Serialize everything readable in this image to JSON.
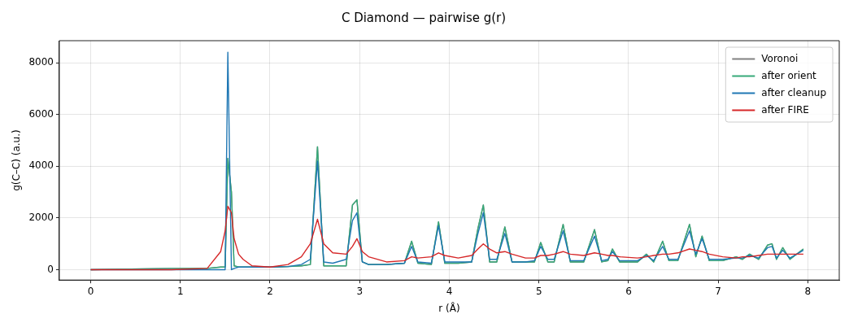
{
  "chart_data": {
    "type": "line",
    "title": "C Diamond — pairwise g(r)",
    "xlabel": "r (Å)",
    "ylabel": "g(C–C) (a.u.)",
    "x": [
      0,
      0.9,
      1.3,
      1.45,
      1.5,
      1.53,
      1.57,
      1.6,
      1.65,
      1.7,
      1.8,
      2.0,
      2.2,
      2.35,
      2.45,
      2.53,
      2.6,
      2.7,
      2.85,
      2.92,
      2.97,
      3.03,
      3.1,
      3.3,
      3.5,
      3.58,
      3.65,
      3.8,
      3.88,
      3.95,
      4.1,
      4.25,
      4.32,
      4.38,
      4.45,
      4.53,
      4.62,
      4.7,
      4.85,
      4.95,
      5.02,
      5.1,
      5.17,
      5.27,
      5.35,
      5.5,
      5.62,
      5.7,
      5.77,
      5.82,
      5.9,
      6.1,
      6.2,
      6.28,
      6.38,
      6.45,
      6.55,
      6.68,
      6.75,
      6.82,
      6.9,
      7.05,
      7.2,
      7.27,
      7.35,
      7.45,
      7.55,
      7.6,
      7.65,
      7.72,
      7.8,
      7.95
    ],
    "series": [
      {
        "name": "Voronoi",
        "color": "#808080",
        "values": [
          0,
          50,
          50,
          100,
          100,
          4300,
          3000,
          150,
          100,
          100,
          100,
          100,
          120,
          150,
          200,
          4750,
          150,
          150,
          150,
          2500,
          2700,
          300,
          200,
          200,
          250,
          1100,
          250,
          200,
          1850,
          250,
          250,
          300,
          1600,
          2500,
          300,
          300,
          1650,
          300,
          300,
          300,
          1050,
          300,
          300,
          1750,
          300,
          300,
          1550,
          300,
          350,
          800,
          300,
          300,
          600,
          300,
          1100,
          350,
          350,
          1750,
          500,
          1300,
          350,
          350,
          500,
          400,
          600,
          400,
          950,
          1000,
          400,
          850,
          400,
          800
        ]
      },
      {
        "name": "after orient",
        "color": "#36a978",
        "values": [
          0,
          50,
          50,
          100,
          100,
          4300,
          3000,
          150,
          100,
          100,
          100,
          100,
          120,
          150,
          200,
          4750,
          150,
          150,
          150,
          2500,
          2700,
          300,
          200,
          200,
          250,
          1100,
          250,
          200,
          1850,
          250,
          250,
          300,
          1600,
          2500,
          300,
          300,
          1650,
          300,
          300,
          300,
          1050,
          300,
          300,
          1750,
          300,
          300,
          1550,
          300,
          350,
          800,
          300,
          300,
          600,
          300,
          1100,
          350,
          350,
          1750,
          500,
          1300,
          350,
          350,
          500,
          400,
          600,
          400,
          950,
          1000,
          400,
          850,
          400,
          800
        ]
      },
      {
        "name": "after cleanup",
        "color": "#1f77b4",
        "values": [
          0,
          0,
          0,
          0,
          0,
          8400,
          0,
          50,
          100,
          100,
          100,
          100,
          120,
          200,
          400,
          4200,
          300,
          250,
          400,
          1900,
          2200,
          300,
          200,
          200,
          250,
          900,
          300,
          250,
          1700,
          300,
          300,
          300,
          1400,
          2200,
          400,
          400,
          1400,
          300,
          300,
          350,
          900,
          400,
          400,
          1500,
          350,
          350,
          1300,
          350,
          400,
          700,
          350,
          350,
          550,
          350,
          900,
          400,
          400,
          1500,
          600,
          1200,
          400,
          400,
          450,
          450,
          550,
          450,
          850,
          900,
          450,
          750,
          450,
          750
        ]
      },
      {
        "name": "after FIRE",
        "color": "#d62728",
        "values": [
          0,
          0,
          50,
          700,
          1500,
          2450,
          2200,
          1200,
          600,
          400,
          150,
          100,
          200,
          500,
          1000,
          1950,
          1000,
          650,
          600,
          900,
          1200,
          700,
          500,
          300,
          350,
          500,
          450,
          500,
          650,
          550,
          450,
          550,
          800,
          1000,
          800,
          650,
          700,
          600,
          450,
          450,
          550,
          550,
          600,
          700,
          600,
          550,
          650,
          600,
          550,
          550,
          500,
          450,
          500,
          550,
          600,
          600,
          650,
          800,
          750,
          700,
          600,
          500,
          450,
          500,
          500,
          550,
          600,
          600,
          600,
          600,
          600,
          600
        ]
      }
    ],
    "xlim": [
      -0.35,
      8.35
    ],
    "xticks": [
      0,
      1,
      2,
      3,
      4,
      5,
      6,
      7,
      8
    ],
    "ylim": [
      -400,
      8850
    ],
    "yticks": [
      0,
      2000,
      4000,
      6000,
      8000
    ],
    "grid": true,
    "legend": "top right",
    "line_style": "solid"
  }
}
